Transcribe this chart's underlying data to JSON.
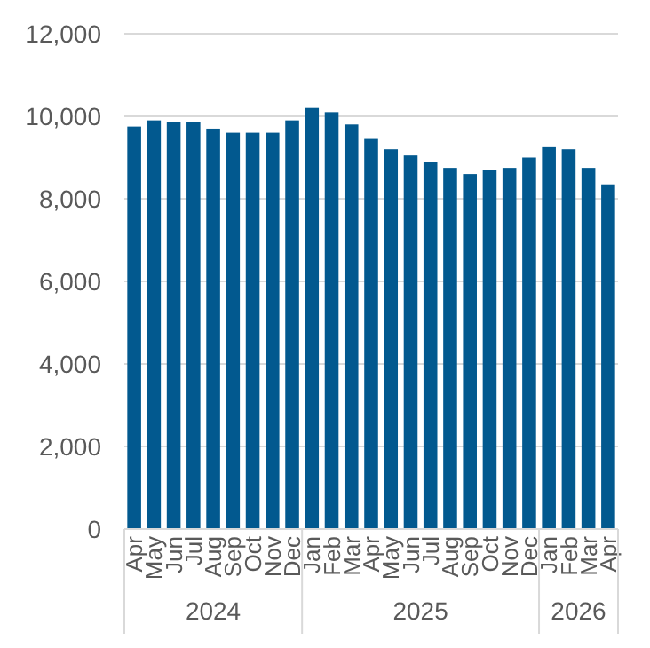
{
  "chart_data": {
    "type": "bar",
    "categories": [
      "Apr",
      "May",
      "Jun",
      "Jul",
      "Aug",
      "Sep",
      "Oct",
      "Nov",
      "Dec",
      "Jan",
      "Feb",
      "Mar",
      "Apr",
      "May",
      "Jun",
      "Jul",
      "Aug",
      "Sep",
      "Oct",
      "Nov",
      "Dec",
      "Jan",
      "Feb",
      "Mar",
      "Apr"
    ],
    "values": [
      9750,
      9900,
      9850,
      9850,
      9700,
      9600,
      9600,
      9600,
      9900,
      10200,
      10100,
      9800,
      9450,
      9200,
      9050,
      8900,
      8750,
      8600,
      8700,
      8750,
      9000,
      9250,
      9200,
      8750,
      8350
    ],
    "color": "#02598f",
    "ylim": [
      0,
      12000
    ],
    "yticks": [
      {
        "value": 0,
        "label": "0"
      },
      {
        "value": 2000,
        "label": "2,000"
      },
      {
        "value": 4000,
        "label": "4,000"
      },
      {
        "value": 6000,
        "label": "6,000"
      },
      {
        "value": 8000,
        "label": "8,000"
      },
      {
        "value": 10000,
        "label": "10,000"
      },
      {
        "value": 12000,
        "label": "12,000"
      }
    ],
    "grid": "y",
    "annotations": [
      "2024",
      "2025",
      "2026"
    ]
  }
}
